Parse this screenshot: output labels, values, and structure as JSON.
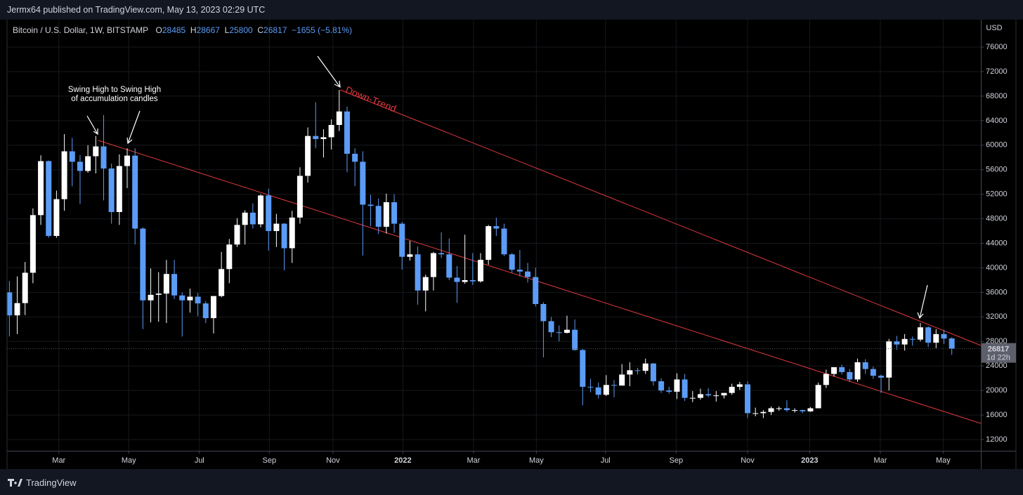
{
  "header": "Jermx64 published on TradingView.com, May 13, 2023 02:29 UTC",
  "brand": "TradingView",
  "chart_data": {
    "type": "candlestick",
    "symbol": "Bitcoin / U.S. Dollar, 1W, BITSTAMP",
    "legend_keys": [
      "O",
      "H",
      "L",
      "C"
    ],
    "change_label": "−1655 (−5.81%)",
    "currency": "USD",
    "countdown": "1d 22h",
    "annotations": {
      "swing": [
        "Swing High to Swing High",
        "of accumulation candles"
      ],
      "trend": "Down-Trend"
    },
    "up_color": "#ffffff",
    "down_color": "#5b9cf6",
    "trendline_color": "#e0393e",
    "grid": true,
    "categories": [
      null,
      null,
      null,
      null,
      null,
      null,
      null,
      null,
      null,
      null,
      null,
      null,
      null,
      null,
      null,
      null,
      null,
      null,
      null,
      null,
      null,
      null,
      null,
      null,
      null,
      null,
      null,
      null,
      null,
      null,
      null,
      null,
      null,
      null,
      null,
      null,
      null,
      null,
      null,
      null,
      null,
      null,
      null,
      null,
      null,
      null,
      null,
      null,
      null,
      null,
      null,
      null,
      null,
      null,
      null,
      null,
      null,
      null,
      null,
      null,
      null,
      null,
      null,
      null,
      null,
      null,
      null,
      null,
      null,
      null,
      null,
      null,
      null,
      null,
      null,
      null,
      null,
      null,
      null,
      null,
      null,
      null,
      null,
      null,
      null,
      null,
      null,
      null,
      null,
      null,
      null,
      null,
      null,
      null,
      null,
      null,
      null,
      null,
      null,
      null,
      null,
      null,
      null,
      null,
      null,
      null,
      null,
      null,
      null,
      null,
      null,
      null,
      null,
      null,
      null,
      null,
      null,
      null,
      null,
      null,
      null
    ],
    "open": [
      36000,
      32250,
      34250,
      39200,
      48600,
      57400,
      45200,
      51200,
      59000,
      57300,
      55800,
      58200,
      59800,
      56200,
      49100,
      56600,
      58300,
      46400,
      34700,
      35600,
      35800,
      39000,
      35500,
      34700,
      35300,
      34200,
      31800,
      35400,
      39800,
      43800,
      47000,
      49000,
      47100,
      51800,
      46000,
      47200,
      43200,
      48200,
      55000,
      61500,
      61000,
      61300,
      63300,
      65500,
      58600,
      57300,
      50300,
      50100,
      46700,
      50700,
      47200,
      41800,
      42200,
      36300,
      38500,
      42400,
      42200,
      38400,
      37700,
      38000,
      37800,
      41300,
      46800,
      46400,
      42200,
      39700,
      39400,
      38500,
      34100,
      31300,
      29500,
      29400,
      29900,
      26600,
      20600,
      20500,
      19300,
      20900,
      20800,
      22600,
      23300,
      23200,
      24400,
      21500,
      20000,
      19800,
      21800,
      18800,
      18800,
      19400,
      19200,
      19200,
      19600,
      20600,
      21000,
      16300,
      16300,
      16500,
      17100,
      17100,
      16800,
      16800,
      16600,
      17100,
      20900,
      22700,
      23800,
      23000,
      21800,
      24600,
      23500,
      22400,
      22100,
      28000,
      27500,
      28400,
      28300,
      30300,
      27800,
      29200,
      28485
    ],
    "high": [
      37850,
      38600,
      40950,
      49700,
      58350,
      57500,
      52600,
      61800,
      61200,
      58400,
      60000,
      61500,
      64900,
      57000,
      58500,
      59500,
      59500,
      46600,
      39900,
      39300,
      41300,
      41300,
      36000,
      36600,
      35900,
      34600,
      35400,
      42600,
      44700,
      48100,
      49400,
      50500,
      52000,
      52900,
      48800,
      47300,
      49300,
      56400,
      62900,
      67000,
      62600,
      64200,
      69000,
      66300,
      59500,
      59000,
      51900,
      51300,
      52100,
      52000,
      47500,
      44400,
      43500,
      38900,
      42600,
      45800,
      44800,
      40300,
      45400,
      42400,
      42400,
      47000,
      48200,
      47200,
      42400,
      42900,
      40800,
      40000,
      34400,
      32000,
      30600,
      32200,
      31600,
      26800,
      21900,
      21300,
      22500,
      21700,
      24300,
      24600,
      23700,
      25200,
      24500,
      22000,
      20600,
      22800,
      22700,
      19900,
      20300,
      20400,
      19900,
      19600,
      21100,
      21400,
      21500,
      17200,
      16800,
      17400,
      17400,
      18400,
      17100,
      16900,
      17300,
      21300,
      23400,
      23800,
      24200,
      23500,
      25200,
      25100,
      23900,
      22600,
      28400,
      28900,
      29200,
      28800,
      31000,
      30500,
      30000,
      29900,
      28667
    ],
    "low": [
      28800,
      29200,
      32300,
      37500,
      47000,
      44900,
      44900,
      49300,
      53300,
      50400,
      55500,
      55400,
      51000,
      47200,
      47000,
      53000,
      43800,
      30000,
      31100,
      31200,
      31000,
      34900,
      28800,
      32700,
      32100,
      31000,
      29300,
      35200,
      37500,
      43400,
      43800,
      46400,
      46600,
      42800,
      43400,
      39600,
      40800,
      47200,
      53900,
      59500,
      58000,
      59300,
      62300,
      55600,
      53300,
      42000,
      46800,
      45500,
      45600,
      45700,
      39700,
      41200,
      34000,
      32900,
      36300,
      41600,
      38000,
      34300,
      37400,
      37200,
      37600,
      40500,
      45200,
      41900,
      39200,
      38600,
      37600,
      33700,
      25400,
      28700,
      28000,
      29300,
      26500,
      17600,
      19700,
      18700,
      19100,
      18900,
      20800,
      20700,
      22600,
      22700,
      20800,
      19600,
      19500,
      18600,
      18300,
      18100,
      18500,
      18900,
      18200,
      18700,
      19300,
      20100,
      15500,
      15800,
      15500,
      16000,
      16700,
      16500,
      16400,
      16300,
      16500,
      17100,
      20400,
      22300,
      22600,
      21400,
      21400,
      22700,
      21900,
      19600,
      20000,
      26600,
      26500,
      27300,
      28000,
      27100,
      26900,
      27600,
      25800
    ],
    "close": [
      32250,
      34250,
      39200,
      48600,
      57400,
      45200,
      51200,
      59000,
      57300,
      55800,
      58200,
      59800,
      56200,
      49100,
      56600,
      58300,
      46400,
      34700,
      35600,
      35800,
      39000,
      35500,
      34700,
      35300,
      34200,
      31800,
      35400,
      39800,
      43800,
      47000,
      49000,
      47100,
      51800,
      46000,
      47200,
      43200,
      48200,
      55000,
      61500,
      61000,
      61300,
      63300,
      65500,
      58600,
      57300,
      50300,
      50100,
      46700,
      50700,
      47200,
      41800,
      42200,
      36300,
      38500,
      42400,
      42200,
      38400,
      37700,
      38000,
      37800,
      41300,
      46800,
      46400,
      42200,
      39700,
      39400,
      38500,
      34100,
      31300,
      29500,
      29400,
      29900,
      26600,
      20600,
      20500,
      19300,
      20900,
      20800,
      22600,
      23300,
      23200,
      24400,
      21500,
      20000,
      19800,
      21800,
      18800,
      18800,
      19400,
      19200,
      19200,
      19600,
      20600,
      21000,
      16300,
      16300,
      16500,
      17100,
      17100,
      16800,
      16800,
      16600,
      17100,
      20900,
      22700,
      23800,
      23000,
      21800,
      24600,
      23500,
      22400,
      22100,
      28000,
      27500,
      28400,
      28300,
      30300,
      27800,
      29200,
      28472,
      26817
    ],
    "xlim": [
      -0.3,
      123.7
    ],
    "xticks": [
      {
        "value": 6.3,
        "label": "Mar"
      },
      {
        "value": 15.2,
        "label": "May"
      },
      {
        "value": 24.2,
        "label": "Jul"
      },
      {
        "value": 33.1,
        "label": "Sep"
      },
      {
        "value": 41.2,
        "label": "Nov"
      },
      {
        "value": 50.1,
        "label": "2022"
      },
      {
        "value": 59.1,
        "label": "Mar"
      },
      {
        "value": 67.1,
        "label": "May"
      },
      {
        "value": 75.9,
        "label": "Jul"
      },
      {
        "value": 84.9,
        "label": "Sep"
      },
      {
        "value": 94,
        "label": "Nov"
      },
      {
        "value": 101.9,
        "label": "2023"
      },
      {
        "value": 110.9,
        "label": "Mar"
      },
      {
        "value": 118.9,
        "label": "May"
      }
    ],
    "ylim": [
      10170,
      80470
    ],
    "yticks": [
      12000,
      16000,
      20000,
      24000,
      28000,
      32000,
      36000,
      40000,
      44000,
      48000,
      52000,
      56000,
      60000,
      64000,
      68000,
      72000,
      76000
    ]
  }
}
